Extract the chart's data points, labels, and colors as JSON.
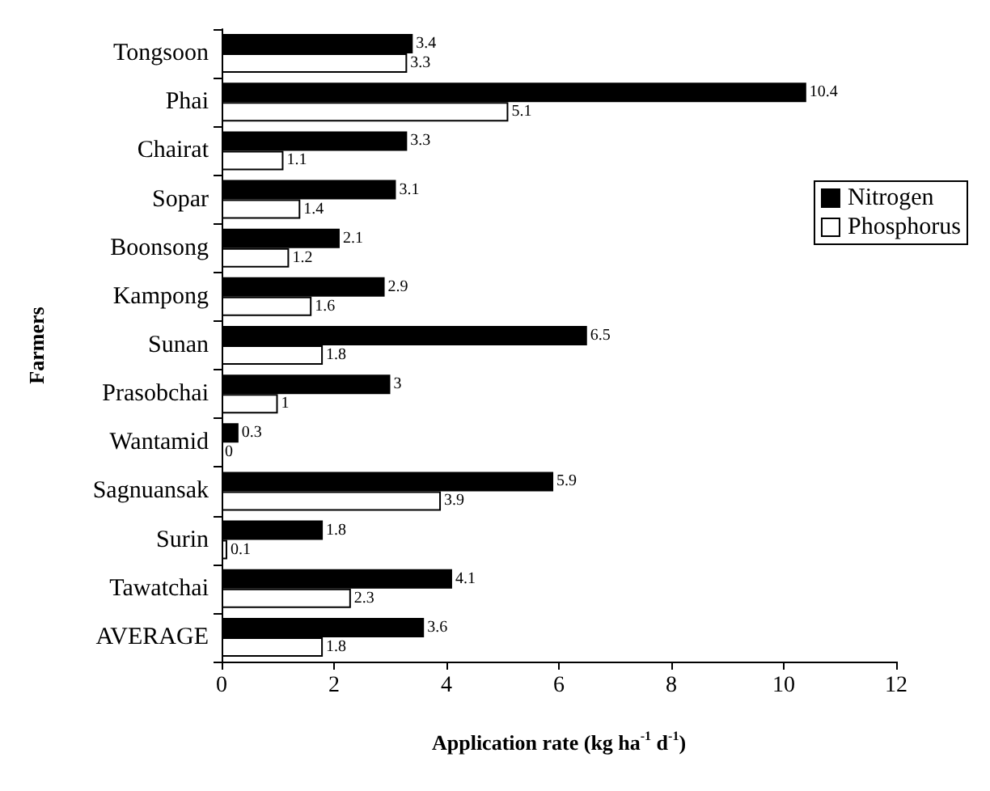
{
  "chart_data": {
    "type": "bar",
    "orientation": "horizontal",
    "xlabel": "Application rate (kg ha$^{-1}$ d$^{-1}$)",
    "ylabel": "Farmers",
    "categories": [
      "Tongsoon",
      "Phai",
      "Chairat",
      "Sopar",
      "Boonsong",
      "Kampong",
      "Sunan",
      "Prasobchai",
      "Wantamid",
      "Sagnuansak",
      "Surin",
      "Tawatchai",
      "AVERAGE"
    ],
    "series": [
      {
        "name": "Nitrogen",
        "color": "#000000",
        "values": [
          3.4,
          10.4,
          3.3,
          3.1,
          2.1,
          2.9,
          6.5,
          3,
          0.3,
          5.9,
          1.8,
          4.1,
          3.6
        ]
      },
      {
        "name": "Phosphorus",
        "color": "#ffffff",
        "values": [
          3.3,
          5.1,
          1.1,
          1.4,
          1.2,
          1.6,
          1.8,
          1,
          0,
          3.9,
          0.1,
          2.3,
          1.8
        ]
      }
    ],
    "xlim": [
      0,
      12
    ],
    "xticks": [
      0,
      2,
      4,
      6,
      8,
      10,
      12
    ],
    "grid": false,
    "legend": "top right",
    "data_labels": true
  }
}
